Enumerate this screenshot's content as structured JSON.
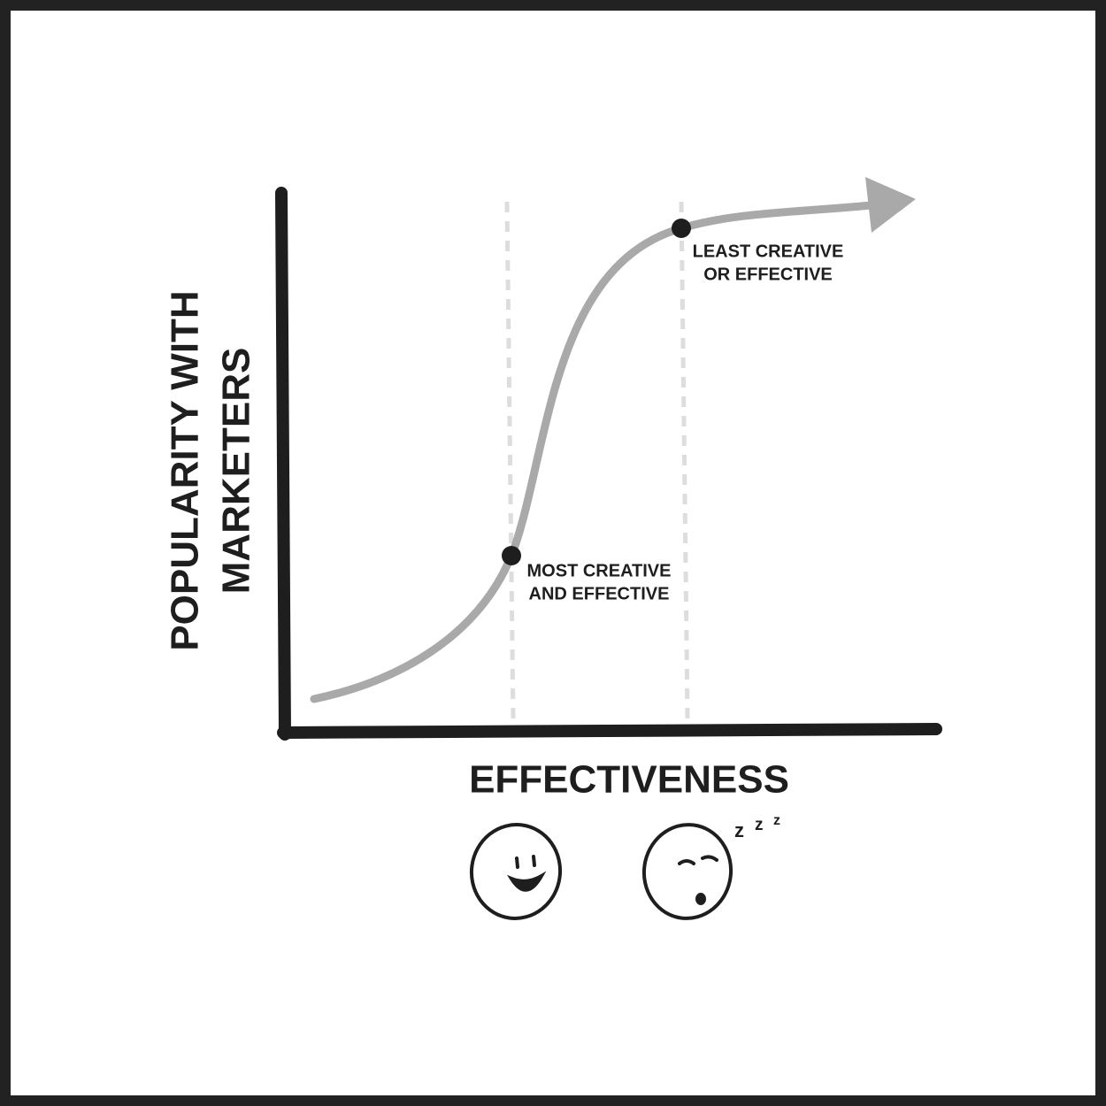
{
  "y_label": [
    "POPULARITY WITH",
    "MARKETERS"
  ],
  "x_label": "EFFECTIVENESS",
  "annotations": [
    {
      "lines": [
        "MOST CREATIVE",
        "AND EFFECTIVE"
      ]
    },
    {
      "lines": [
        "LEAST CREATIVE",
        "OR EFFECTIVE"
      ]
    }
  ],
  "sleep": [
    "z",
    "z",
    "z"
  ]
}
